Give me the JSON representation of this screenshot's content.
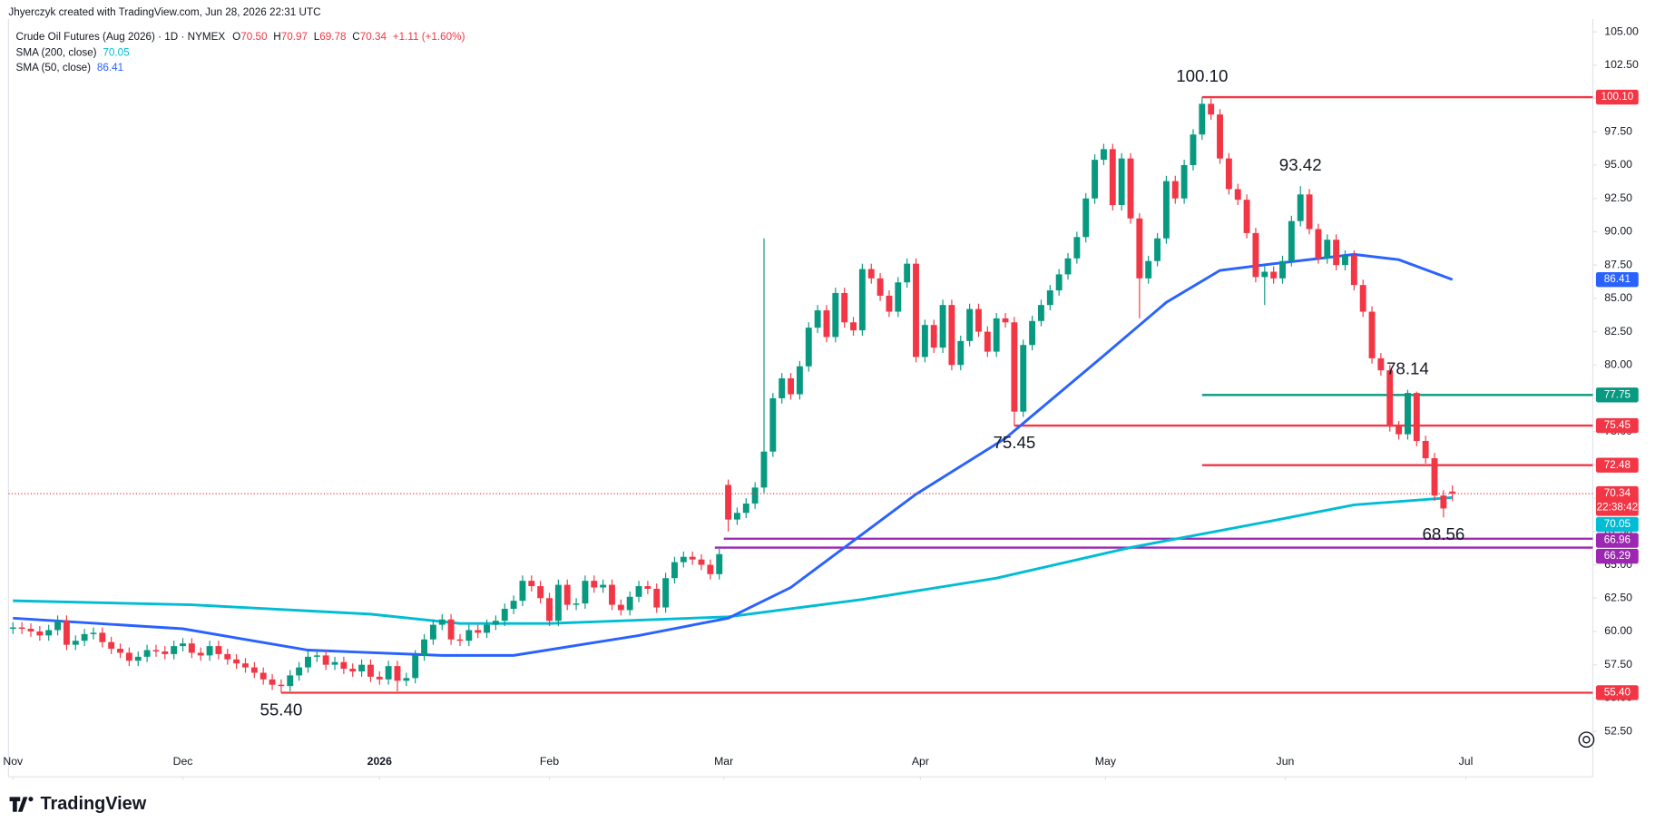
{
  "header": {
    "attribution": "Jhyerczyk created with TradingView.com, Jun 28, 2026 22:31 UTC",
    "symbol": "Crude Oil Futures (Aug 2026) · 1D · NYMEX",
    "ohlc": [
      {
        "key": "O",
        "value": "70.50"
      },
      {
        "key": "H",
        "value": "70.97"
      },
      {
        "key": "L",
        "value": "69.78"
      },
      {
        "key": "C",
        "value": "70.34"
      }
    ],
    "change": "+1.11 (+1.60%)",
    "countdown": "22:38:42",
    "brand": "TradingView"
  },
  "chart_data": {
    "type": "candlestick",
    "grid": false,
    "up_color": "#089981",
    "down_color": "#f23645",
    "xlim": [
      -0.5,
      176.7
    ],
    "ylim": [
      51.0,
      105.96
    ],
    "xticks": [
      {
        "value": 0,
        "label": "Nov"
      },
      {
        "value": 19,
        "label": "Dec"
      },
      {
        "value": 41,
        "label": "2026"
      },
      {
        "value": 60,
        "label": "Feb"
      },
      {
        "value": 79.5,
        "label": "Mar"
      },
      {
        "value": 101.5,
        "label": "Apr"
      },
      {
        "value": 122.2,
        "label": "May"
      },
      {
        "value": 142.3,
        "label": "Jun"
      },
      {
        "value": 162.5,
        "label": "Jul"
      }
    ],
    "yticks": [
      {
        "value": 52.5,
        "label": "52.50"
      },
      {
        "value": 55,
        "label": "55.00"
      },
      {
        "value": 57.5,
        "label": "57.50"
      },
      {
        "value": 60,
        "label": "60.00"
      },
      {
        "value": 62.5,
        "label": "62.50"
      },
      {
        "value": 65,
        "label": "65.00"
      },
      {
        "value": 67.5,
        "label": "67.50"
      },
      {
        "value": 70,
        "label": "70.00"
      },
      {
        "value": 72.5,
        "label": "72.50"
      },
      {
        "value": 75,
        "label": "75.00"
      },
      {
        "value": 77.5,
        "label": "77.50"
      },
      {
        "value": 80,
        "label": "80.00"
      },
      {
        "value": 82.5,
        "label": "82.50"
      },
      {
        "value": 85,
        "label": "85.00"
      },
      {
        "value": 87.5,
        "label": "87.50"
      },
      {
        "value": 90,
        "label": "90.00"
      },
      {
        "value": 92.5,
        "label": "92.50"
      },
      {
        "value": 95,
        "label": "95.00"
      },
      {
        "value": 97.5,
        "label": "97.50"
      },
      {
        "value": 100,
        "label": "100.00"
      },
      {
        "value": 102.5,
        "label": "102.50"
      },
      {
        "value": 105,
        "label": "105.00"
      }
    ],
    "series": [
      {
        "open": [
          60.2,
          60.3,
          60.2,
          60.0,
          59.7,
          60.1,
          60.8,
          59.0,
          59.3,
          59.8,
          59.9,
          59.2,
          58.7,
          58.4,
          57.8,
          58.1,
          58.6,
          58.5,
          58.3,
          58.9,
          59.1,
          58.4,
          58.2,
          58.9,
          58.3,
          57.9,
          57.6,
          57.3,
          56.9,
          56.4,
          56.0,
          55.9,
          56.7,
          57.3,
          58.1,
          58.2,
          57.5,
          57.7,
          57.2,
          57.0,
          57.5,
          56.6,
          56.4,
          57.4,
          56.3,
          56.5,
          58.2,
          59.4,
          60.5,
          60.9,
          59.4,
          59.3,
          60.1,
          59.9,
          60.5,
          60.8,
          61.7,
          62.3,
          63.8,
          63.4,
          62.5,
          60.8,
          63.5,
          62.0,
          62.1,
          63.8,
          63.3,
          63.5,
          62.0,
          61.6,
          62.6,
          63.4,
          63.2,
          61.8,
          64.0,
          65.2,
          65.6,
          65.4,
          65.0,
          64.3,
          71.0,
          68.4,
          68.9,
          69.6,
          70.8,
          73.5,
          77.5,
          79.0,
          77.8,
          79.9,
          82.8,
          84.1,
          82.1,
          85.4,
          83.2,
          82.6,
          87.2,
          86.5,
          85.2,
          84.0,
          86.2,
          87.6,
          80.6,
          83.0,
          81.3,
          84.5,
          80.0,
          81.8,
          84.2,
          82.5,
          81.0,
          83.5,
          83.2,
          76.5,
          81.5,
          83.3,
          84.5,
          85.6,
          86.8,
          88.0,
          89.6,
          92.5,
          95.4,
          96.2,
          92.0,
          95.5,
          91.0,
          86.5,
          87.8,
          89.5,
          93.8,
          92.5,
          95.0,
          97.3,
          99.6,
          98.8,
          95.5,
          93.2,
          92.4,
          89.9,
          86.6,
          87.0,
          86.5,
          87.8,
          90.8,
          92.8,
          90.2,
          88.0,
          89.4,
          87.5,
          88.2,
          86.0,
          84.0,
          80.5,
          79.6,
          75.4,
          74.8,
          77.9,
          74.3,
          73.0,
          70.2,
          70.5
        ],
        "high": [
          60.7,
          60.7,
          60.6,
          60.4,
          60.5,
          61.2,
          61.2,
          59.7,
          60.2,
          60.3,
          60.3,
          59.6,
          59.1,
          58.8,
          58.5,
          59.0,
          59.0,
          58.9,
          59.3,
          59.5,
          59.5,
          58.8,
          59.3,
          59.3,
          58.7,
          58.3,
          58.0,
          57.7,
          57.3,
          56.8,
          56.4,
          57.1,
          57.7,
          58.5,
          58.6,
          58.6,
          58.1,
          58.1,
          57.6,
          57.9,
          57.9,
          57.0,
          57.8,
          57.8,
          56.9,
          58.6,
          59.8,
          60.9,
          61.3,
          61.3,
          59.8,
          60.5,
          60.5,
          60.9,
          61.2,
          62.1,
          62.7,
          64.2,
          64.2,
          63.8,
          62.9,
          63.9,
          63.9,
          62.5,
          64.2,
          64.2,
          63.9,
          63.9,
          62.4,
          63.0,
          63.8,
          63.8,
          63.6,
          64.4,
          65.6,
          66.0,
          66.0,
          65.8,
          65.4,
          66.2,
          71.4,
          69.3,
          70.0,
          71.2,
          89.5,
          77.9,
          79.4,
          79.4,
          80.3,
          83.2,
          84.5,
          84.5,
          85.8,
          85.8,
          83.6,
          87.6,
          87.6,
          86.9,
          85.6,
          86.6,
          88.0,
          88.0,
          83.4,
          83.4,
          84.9,
          84.9,
          82.2,
          84.6,
          84.6,
          82.9,
          83.9,
          83.9,
          83.6,
          81.9,
          83.7,
          84.9,
          86.0,
          87.2,
          88.4,
          90.0,
          92.9,
          95.8,
          96.6,
          96.6,
          95.9,
          95.9,
          91.4,
          88.2,
          89.9,
          94.2,
          94.2,
          95.4,
          97.7,
          100.1,
          100.0,
          99.2,
          95.9,
          93.6,
          92.8,
          90.3,
          87.4,
          87.4,
          88.2,
          91.2,
          93.42,
          93.2,
          90.6,
          89.8,
          89.8,
          88.6,
          88.6,
          86.4,
          84.4,
          80.9,
          80.0,
          75.8,
          78.14,
          78.0,
          74.7,
          73.4,
          70.6,
          70.97
        ],
        "low": [
          59.8,
          59.8,
          59.6,
          59.3,
          59.3,
          59.7,
          58.6,
          58.6,
          58.9,
          59.4,
          58.8,
          58.3,
          58.0,
          57.4,
          57.4,
          57.7,
          58.1,
          57.9,
          57.9,
          58.5,
          58.0,
          57.8,
          57.8,
          57.9,
          57.5,
          57.2,
          56.9,
          56.5,
          56.0,
          55.6,
          55.4,
          55.5,
          56.3,
          56.9,
          57.7,
          57.1,
          57.1,
          56.8,
          56.6,
          56.6,
          56.2,
          56.0,
          56.0,
          55.5,
          55.9,
          56.1,
          57.8,
          59.0,
          60.1,
          59.0,
          58.9,
          58.9,
          59.5,
          59.5,
          60.1,
          60.4,
          61.3,
          61.9,
          63.0,
          62.1,
          60.4,
          60.4,
          61.6,
          61.6,
          61.7,
          62.9,
          62.9,
          61.6,
          61.2,
          61.2,
          62.2,
          62.8,
          61.4,
          61.4,
          63.6,
          64.8,
          65.0,
          64.6,
          63.9,
          63.9,
          67.5,
          68.0,
          68.5,
          69.2,
          70.4,
          73.1,
          77.1,
          77.4,
          77.4,
          79.5,
          82.4,
          81.7,
          81.7,
          82.8,
          82.2,
          82.2,
          86.1,
          84.8,
          83.6,
          83.6,
          85.8,
          80.2,
          80.2,
          80.9,
          80.9,
          79.6,
          79.6,
          81.4,
          82.1,
          80.6,
          80.6,
          82.8,
          75.45,
          76.1,
          81.1,
          82.9,
          84.1,
          85.2,
          86.4,
          87.6,
          89.2,
          92.1,
          95.0,
          91.6,
          91.6,
          90.6,
          83.5,
          86.1,
          87.4,
          89.1,
          92.1,
          92.1,
          94.6,
          96.9,
          98.4,
          95.1,
          92.8,
          92.0,
          89.5,
          86.2,
          84.5,
          86.1,
          86.1,
          87.4,
          90.4,
          89.8,
          87.6,
          87.6,
          87.1,
          87.1,
          85.6,
          83.6,
          80.1,
          79.2,
          75.0,
          74.4,
          74.4,
          73.9,
          72.6,
          69.8,
          68.56,
          69.78
        ],
        "close": [
          60.3,
          60.2,
          60.0,
          59.7,
          60.1,
          60.8,
          59.0,
          59.3,
          59.8,
          59.9,
          59.2,
          58.7,
          58.4,
          57.8,
          58.1,
          58.6,
          58.5,
          58.3,
          58.9,
          59.1,
          58.4,
          58.2,
          58.9,
          58.3,
          57.9,
          57.6,
          57.3,
          56.9,
          56.4,
          56.0,
          55.9,
          56.7,
          57.3,
          58.1,
          58.2,
          57.5,
          57.7,
          57.2,
          57.0,
          57.5,
          56.6,
          56.4,
          57.4,
          56.3,
          56.5,
          58.2,
          59.4,
          60.5,
          60.9,
          59.4,
          59.3,
          60.1,
          59.9,
          60.5,
          60.8,
          61.7,
          62.3,
          63.8,
          63.4,
          62.5,
          60.8,
          63.5,
          62.0,
          62.1,
          63.8,
          63.3,
          63.5,
          62.0,
          61.6,
          62.6,
          63.4,
          63.2,
          61.8,
          64.0,
          65.2,
          65.6,
          65.4,
          65.0,
          64.3,
          65.8,
          68.4,
          68.9,
          69.6,
          70.8,
          73.5,
          77.5,
          79.0,
          77.8,
          79.9,
          82.8,
          84.1,
          82.1,
          85.4,
          83.2,
          82.6,
          87.2,
          86.5,
          85.2,
          84.0,
          86.2,
          87.6,
          80.6,
          83.0,
          81.3,
          84.5,
          80.0,
          81.8,
          84.2,
          82.5,
          81.0,
          83.5,
          83.2,
          76.5,
          81.5,
          83.3,
          84.5,
          85.6,
          86.8,
          88.0,
          89.6,
          92.5,
          95.4,
          96.2,
          92.0,
          95.5,
          91.0,
          86.5,
          87.8,
          89.5,
          93.8,
          92.5,
          95.0,
          97.3,
          99.6,
          98.8,
          95.5,
          93.2,
          92.4,
          89.9,
          86.6,
          87.0,
          86.5,
          87.8,
          90.8,
          92.8,
          90.2,
          88.0,
          89.4,
          87.5,
          88.2,
          86.0,
          84.0,
          80.5,
          79.6,
          75.4,
          74.8,
          77.9,
          74.3,
          73.0,
          70.2,
          69.23,
          70.34
        ]
      }
    ],
    "overlays": [
      {
        "name": "SMA (200, close)",
        "color": "#00bcd4",
        "x": [
          0,
          20,
          40,
          50,
          60,
          80,
          95,
          110,
          125,
          140,
          150,
          161
        ],
        "values": [
          62.3,
          62.0,
          61.3,
          60.6,
          60.6,
          61.1,
          62.4,
          64.0,
          66.3,
          68.2,
          69.5,
          70.05
        ]
      },
      {
        "name": "SMA (50, close)",
        "color": "#2962ff",
        "x": [
          0,
          19,
          33,
          48,
          56,
          70,
          80,
          87,
          94,
          101,
          111,
          122,
          129,
          135,
          141,
          150,
          155,
          161
        ],
        "values": [
          61.0,
          60.2,
          58.6,
          58.2,
          58.2,
          59.7,
          61.0,
          63.3,
          66.8,
          70.3,
          74.5,
          80.7,
          84.7,
          87.1,
          87.6,
          88.3,
          87.9,
          86.41
        ]
      }
    ],
    "levels": [
      {
        "value": {
          "value": 100.1,
          "label": "100.10"
        },
        "start": 133,
        "color": "#f23645"
      },
      {
        "value": {
          "value": 77.75,
          "label": "77.75"
        },
        "start": 133,
        "color": "#089981"
      },
      {
        "value": {
          "value": 75.45,
          "label": "75.45"
        },
        "start": 112,
        "color": "#f23645"
      },
      {
        "value": {
          "value": 72.48,
          "label": "72.48"
        },
        "start": 133,
        "color": "#f23645"
      },
      {
        "value": {
          "value": 66.96,
          "label": "66.96"
        },
        "start": 79.5,
        "color": "#9c27b0"
      },
      {
        "value": {
          "value": 66.29,
          "label": "66.29"
        },
        "start": 78.5,
        "color": "#9c27b0"
      },
      {
        "value": {
          "value": 55.4,
          "label": "55.40"
        },
        "start": 30,
        "color": "#f23645"
      }
    ],
    "annotations": [
      {
        "x": 133,
        "value": {
          "value": 100.1,
          "label": "100.10"
        }
      },
      {
        "x": 144,
        "value": {
          "value": 93.42,
          "label": "93.42"
        }
      },
      {
        "x": 156,
        "value": {
          "value": 78.14,
          "label": "78.14"
        }
      },
      {
        "x": 112,
        "value": {
          "value": 75.45,
          "label": "75.45"
        }
      },
      {
        "x": 160,
        "value": {
          "value": 68.56,
          "label": "68.56"
        }
      },
      {
        "x": 30,
        "value": {
          "value": 55.4,
          "label": "55.40"
        }
      }
    ]
  }
}
